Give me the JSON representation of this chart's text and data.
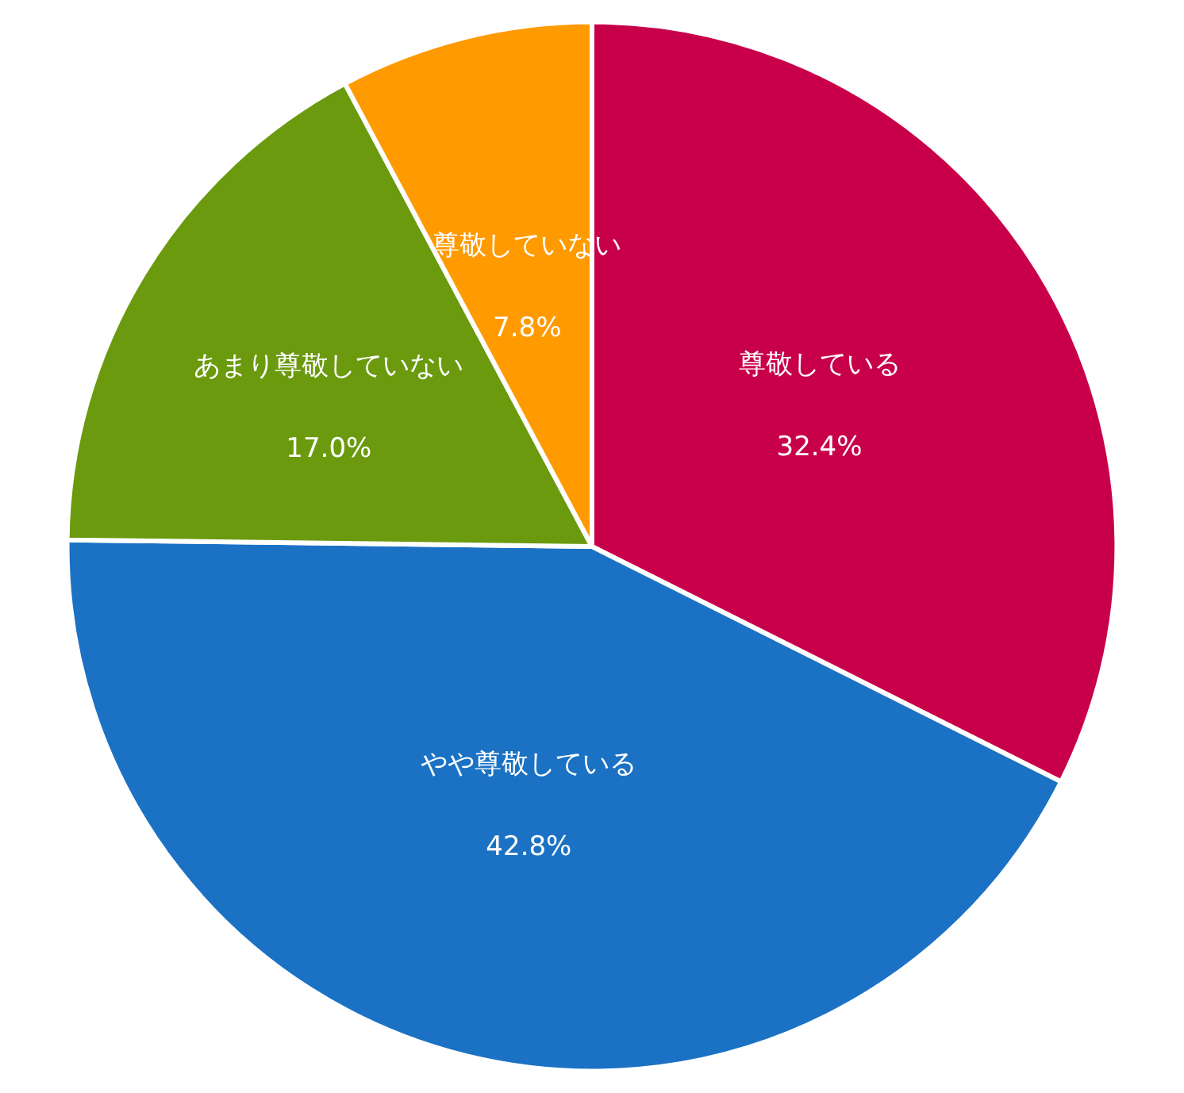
{
  "chart_data": {
    "type": "pie",
    "categories": [
      "尊敬している",
      "やや尊敬している",
      "あまり尊敬していない",
      "尊敬していない"
    ],
    "values": [
      32.4,
      42.8,
      17.0,
      7.8
    ],
    "value_labels": [
      "32.4%",
      "42.8%",
      "17.0%",
      "7.8%"
    ],
    "colors": [
      "#c8004a",
      "#1b72c4",
      "#6b9a0e",
      "#ff9a00"
    ],
    "legend": false
  }
}
